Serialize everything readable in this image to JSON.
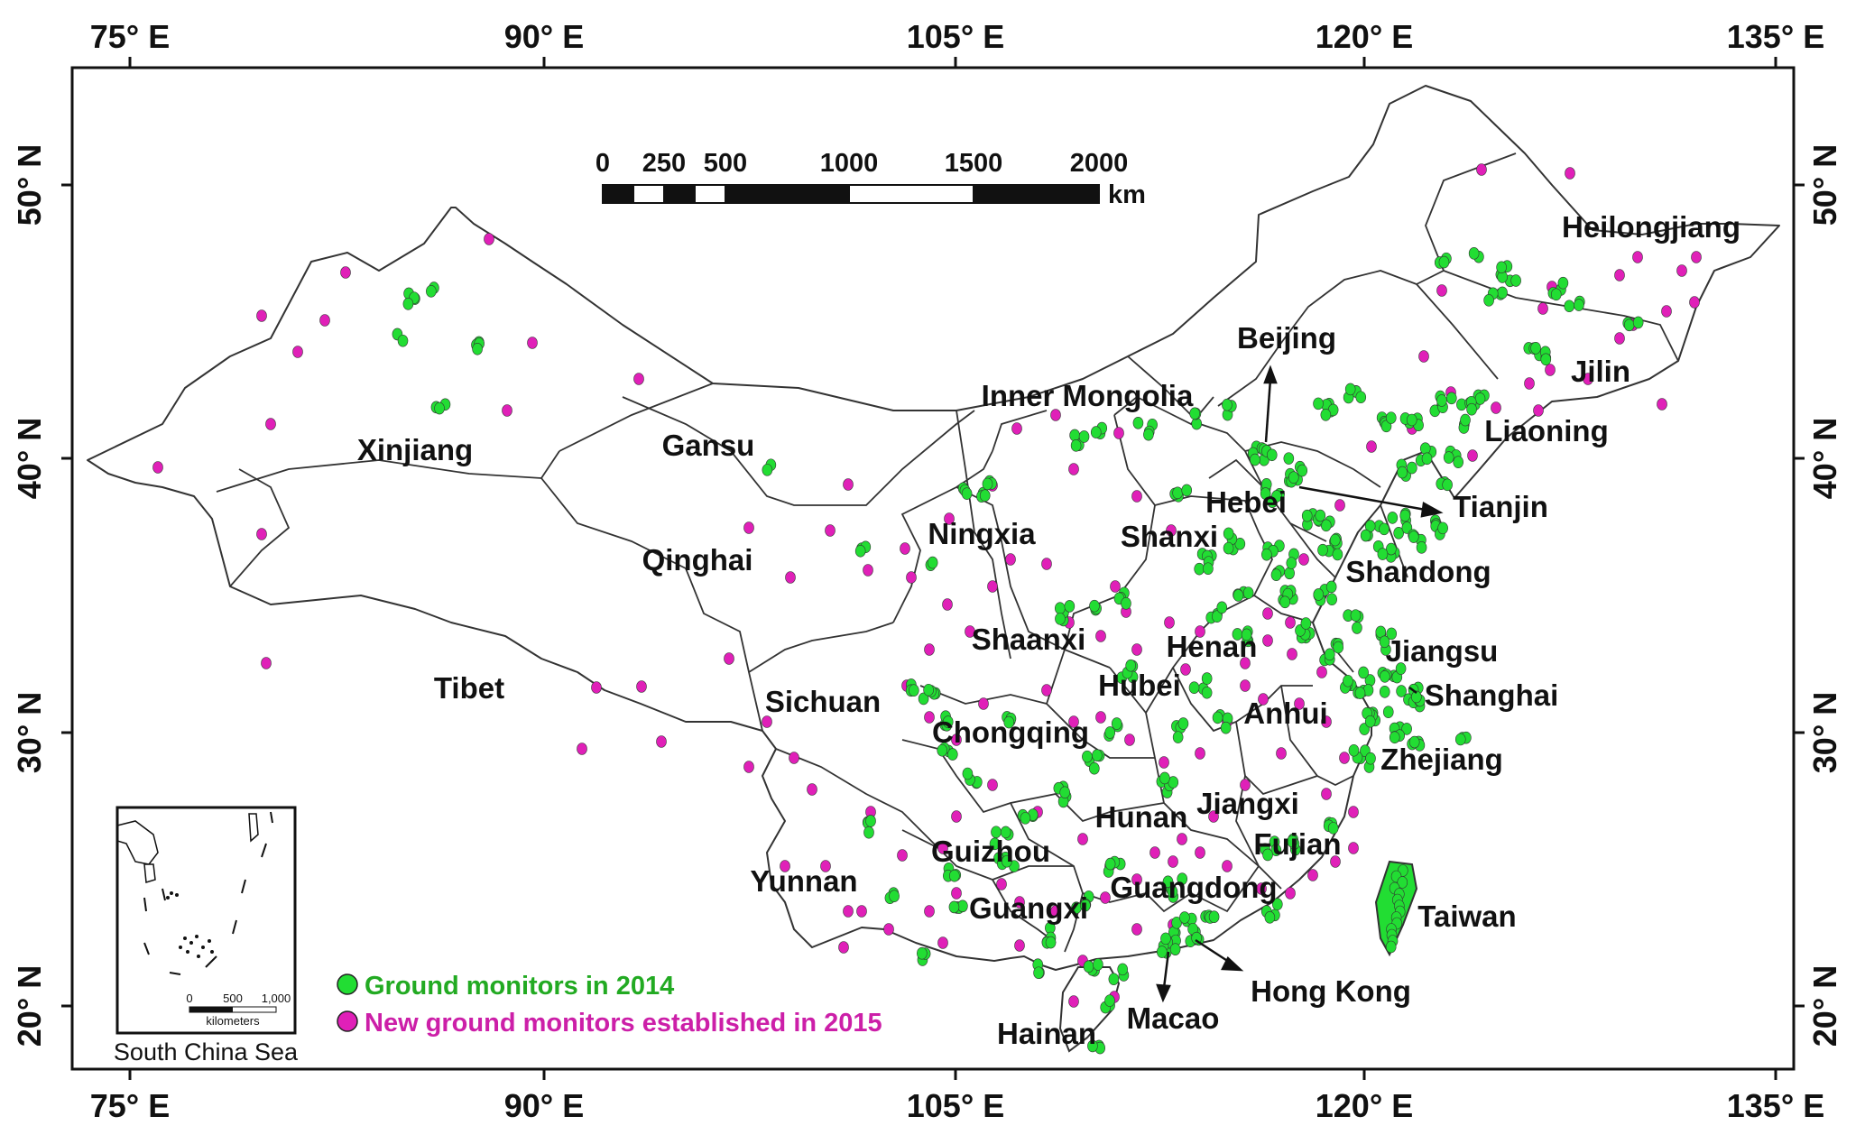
{
  "top_axis": [
    "75° E",
    "90° E",
    "105° E",
    "120° E",
    "135° E"
  ],
  "bottom_axis": [
    "75° E",
    "90° E",
    "105° E",
    "120° E",
    "135° E"
  ],
  "left_axis": [
    "50° N",
    "40° N",
    "30° N",
    "20° N"
  ],
  "right_axis": [
    "50° N",
    "40° N",
    "30° N",
    "20° N"
  ],
  "scale_bar": {
    "labels": [
      "0",
      "250",
      "500",
      "1000",
      "1500",
      "2000"
    ],
    "unit": "km"
  },
  "regions": [
    {
      "label": "Xinjiang"
    },
    {
      "label": "Gansu"
    },
    {
      "label": "Qinghai"
    },
    {
      "label": "Tibet"
    },
    {
      "label": "Inner Mongolia"
    },
    {
      "label": "Ningxia"
    },
    {
      "label": "Shaanxi"
    },
    {
      "label": "Sichuan"
    },
    {
      "label": "Chongqing"
    },
    {
      "label": "Yunnan"
    },
    {
      "label": "Guizhou"
    },
    {
      "label": "Guangxi"
    },
    {
      "label": "Hainan"
    },
    {
      "label": "Macao"
    },
    {
      "label": "Hong Kong"
    },
    {
      "label": "Guangdong"
    },
    {
      "label": "Hunan"
    },
    {
      "label": "Jiangxi"
    },
    {
      "label": "Fujian"
    },
    {
      "label": "Taiwan"
    },
    {
      "label": "Zhejiang"
    },
    {
      "label": "Anhui"
    },
    {
      "label": "Shanghai"
    },
    {
      "label": "Jiangsu"
    },
    {
      "label": "Hubei"
    },
    {
      "label": "Henan"
    },
    {
      "label": "Shandong"
    },
    {
      "label": "Shanxi"
    },
    {
      "label": "Hebei"
    },
    {
      "label": "Tianjin"
    },
    {
      "label": "Beijing"
    },
    {
      "label": "Liaoning"
    },
    {
      "label": "Jilin"
    },
    {
      "label": "Heilongjiang"
    }
  ],
  "legend": {
    "items": [
      {
        "label": "Ground monitors in 2014",
        "color": "#22dd33"
      },
      {
        "label": "New ground monitors established in 2015",
        "color": "#e020b8"
      }
    ]
  },
  "inset": {
    "title": "South China Sea",
    "scale_labels": [
      "0",
      "500",
      "1,000"
    ],
    "unit": "kilometers"
  },
  "colors": {
    "monitor_2014": "#22dd33",
    "monitor_2015": "#e020b8",
    "boundary": "#333333"
  }
}
